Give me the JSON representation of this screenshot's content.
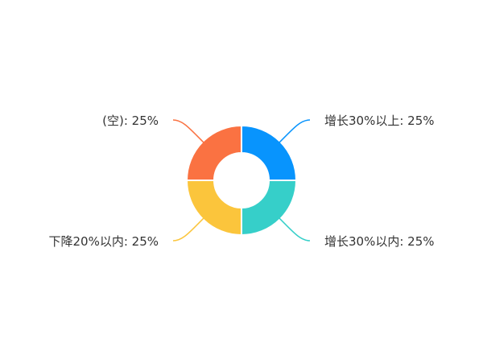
{
  "chart_data": {
    "type": "pie",
    "variant": "donut",
    "categories": [
      "增长30%以上",
      "增长30%以内",
      "下降20%以内",
      "(空)"
    ],
    "values": [
      25,
      25,
      25,
      25
    ],
    "labels": [
      "增长30%以上: 25%",
      "增长30%以内: 25%",
      "下降20%以内: 25%",
      "(空): 25%"
    ],
    "colors": [
      "#0894fd",
      "#36cfc9",
      "#fbc53c",
      "#fa7242"
    ],
    "legend": "none"
  }
}
